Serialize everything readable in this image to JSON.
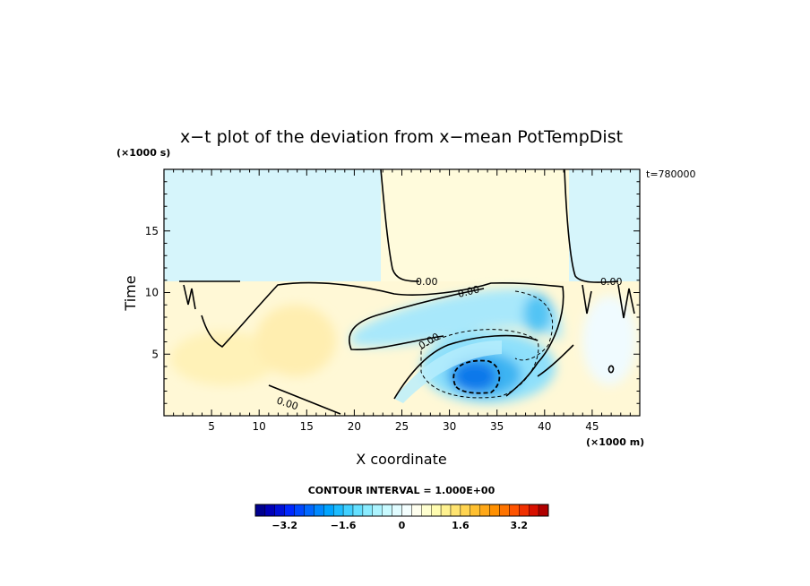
{
  "chart_data": {
    "type": "heatmap",
    "title": "x−t plot of the deviation from x−mean PotTempDist",
    "xlabel": "X coordinate",
    "ylabel": "Time",
    "x_unit": "(×1000 m)",
    "y_unit": "(×1000 s)",
    "time_label": "t=780000",
    "xlim": [
      0,
      50
    ],
    "ylim": [
      0,
      20
    ],
    "xticks": [
      5,
      10,
      15,
      20,
      25,
      30,
      35,
      40,
      45
    ],
    "yticks": [
      5,
      10,
      15
    ],
    "contour_interval_label": "CONTOUR INTERVAL = 1.000E+00",
    "contour_labels": [
      "0.00",
      "0.00",
      "0.00",
      "0.00",
      "0.00"
    ],
    "colorbar": {
      "min": -4.0,
      "max": 4.0,
      "ticks": [
        -3.2,
        -1.6,
        0,
        1.6,
        3.2
      ],
      "tick_labels": [
        "−3.2",
        "−1.6",
        "0",
        "1.6",
        "3.2"
      ],
      "colors": [
        "#00008f",
        "#0000b8",
        "#0010d8",
        "#0028ff",
        "#0048ff",
        "#0068ff",
        "#0088ff",
        "#00a4ff",
        "#1cbcff",
        "#40d0ff",
        "#64e0ff",
        "#8aecff",
        "#acf4ff",
        "#c8faff",
        "#e0fcff",
        "#f4ffff",
        "#ffffef",
        "#ffffd0",
        "#fffcb0",
        "#fff290",
        "#ffe470",
        "#ffd450",
        "#ffc030",
        "#ffa818",
        "#ff9000",
        "#ff7400",
        "#ff5400",
        "#f03000",
        "#d81000",
        "#b00000"
      ]
    }
  }
}
